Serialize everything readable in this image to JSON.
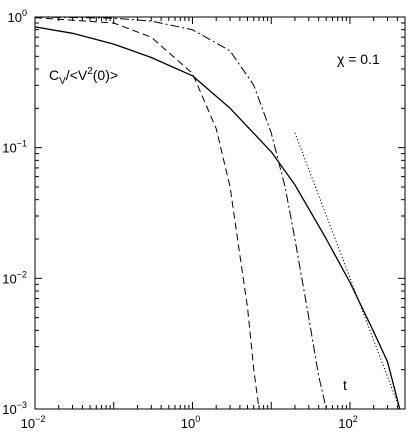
{
  "chart_data": {
    "type": "line",
    "xscale": "log",
    "yscale": "log",
    "xlim": [
      0.01,
      500
    ],
    "ylim": [
      0.001,
      1
    ],
    "x_ticks": [
      {
        "value": 0.01,
        "base": "10",
        "exp": "−2"
      },
      {
        "value": 1,
        "base": "10",
        "exp": "0"
      },
      {
        "value": 100,
        "base": "10",
        "exp": "2"
      }
    ],
    "y_ticks": [
      {
        "value": 0.001,
        "base": "10",
        "exp": "−3"
      },
      {
        "value": 0.01,
        "base": "10",
        "exp": "−2"
      },
      {
        "value": 0.1,
        "base": "10",
        "exp": "−1"
      },
      {
        "value": 1,
        "base": "10",
        "exp": "0"
      }
    ],
    "annotations": {
      "ylabel_prefix": "C",
      "ylabel_sub": "V",
      "ylabel_mid": "/<V",
      "ylabel_sup": "2",
      "ylabel_suffix": "(0)>",
      "param_label": "χ = 0.1",
      "xlabel": "t"
    },
    "series": [
      {
        "style": "solid",
        "x": [
          0.01,
          0.03,
          0.1,
          0.3,
          1,
          3,
          10,
          20,
          50,
          100,
          200,
          300,
          430
        ],
        "y": [
          0.84,
          0.75,
          0.62,
          0.49,
          0.355,
          0.2,
          0.093,
          0.052,
          0.02,
          0.0093,
          0.0039,
          0.0023,
          0.001
        ]
      },
      {
        "style": "dashed",
        "x": [
          0.01,
          0.1,
          0.3,
          1,
          2,
          3,
          4,
          5,
          6,
          7
        ],
        "y": [
          0.99,
          0.9,
          0.7,
          0.37,
          0.14,
          0.05,
          0.015,
          0.006,
          0.002,
          0.001
        ]
      },
      {
        "style": "dashdot",
        "x": [
          0.01,
          0.1,
          0.3,
          1,
          3,
          6,
          10,
          15,
          20,
          30,
          40,
          50
        ],
        "y": [
          1.0,
          0.98,
          0.93,
          0.8,
          0.55,
          0.3,
          0.13,
          0.05,
          0.02,
          0.005,
          0.0018,
          0.001
        ]
      },
      {
        "style": "dotted",
        "x": [
          20,
          430
        ],
        "y": [
          0.13,
          0.001
        ]
      }
    ]
  }
}
